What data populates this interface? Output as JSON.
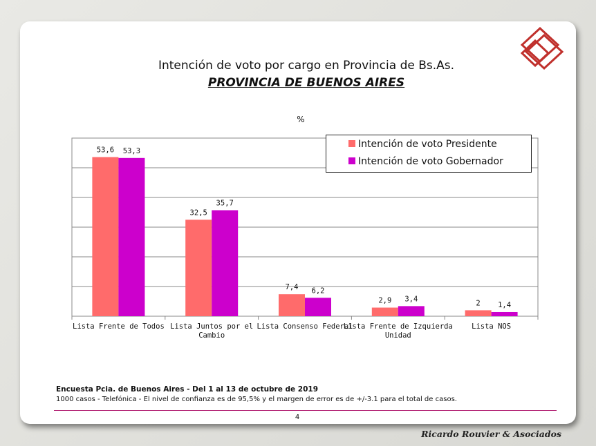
{
  "header": {
    "title": "Intención de voto por cargo en Provincia de Bs.As.",
    "subtitle": "PROVINCIA DE BUENOS AIRES"
  },
  "colors": {
    "presidente": "#ff6b6b",
    "gobernador": "#cc00cc",
    "logo": "#c0302c"
  },
  "chart_data": {
    "type": "bar",
    "title": "",
    "unit_label": "%",
    "categories": [
      "Lista Frente de Todos",
      "Lista Juntos por el Cambio",
      "Lista Consenso Federal",
      "Lista Frente de Izquierda Unidad",
      "Lista NOS"
    ],
    "category_lines": [
      [
        "Lista Frente de Todos"
      ],
      [
        "Lista Juntos por el",
        "Cambio"
      ],
      [
        "Lista Consenso Federal"
      ],
      [
        "Lista Frente de Izquierda",
        "Unidad"
      ],
      [
        "Lista NOS"
      ]
    ],
    "series": [
      {
        "name": "Intención de voto Presidente",
        "values": [
          53.6,
          32.5,
          7.4,
          2.9,
          2.0
        ],
        "labels": [
          "53,6",
          "32,5",
          "7,4",
          "2,9",
          "2"
        ]
      },
      {
        "name": "Intención de voto Gobernador",
        "values": [
          53.3,
          35.7,
          6.2,
          3.4,
          1.4
        ],
        "labels": [
          "53,3",
          "35,7",
          "6,2",
          "3,4",
          "1,4"
        ]
      }
    ],
    "ylim": [
      0,
      60
    ],
    "grid": true,
    "legend": "top-right"
  },
  "footer": {
    "survey": "Encuesta Pcia. de Buenos Aires - Del 1 al 13 de octubre de 2019",
    "note": "1000 casos - Telefónica   - El nivel de confianza es de 95,5% y el margen de error es de +/-3.1 para el total de casos.",
    "page_number": "4",
    "brand": "Ricardo Rouvier & Asociados"
  }
}
